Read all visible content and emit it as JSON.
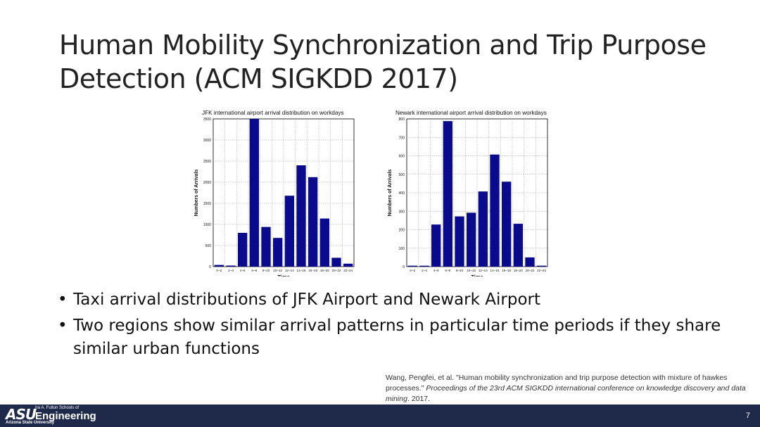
{
  "slide": {
    "title": "Human Mobility Synchronization and Trip Purpose Detection (ACM SIGKDD 2017)",
    "page_number": "7",
    "bullet_symbol": "•",
    "bullets": [
      "Taxi arrival distributions of JFK Airport and Newark Airport",
      "Two regions show similar arrival patterns in particular time periods if they share similar urban functions"
    ],
    "citation": {
      "pre": "Wang, Pengfei, et al. \"Human mobility synchronization and trip purpose detection with mixture of hawkes processes.\" ",
      "venue": "Proceedings of the 23rd ACM SIGKDD international conference on knowledge discovery and data mining",
      "post": ". 2017."
    }
  },
  "footer": {
    "logo_mark": "ASU",
    "logo_small": "Ira A. Fulton Schools of",
    "logo_main": "Engineering",
    "logo_sub": "Arizona State University",
    "background": "#1f2a4a"
  },
  "chart_data": [
    {
      "type": "bar",
      "title": "JFK international airport arrival distribution on workdays",
      "xlabel": "Time",
      "ylabel": "Numbers of Arrivals",
      "categories": [
        "0~2",
        "2~4",
        "4~6",
        "6~8",
        "8~10",
        "10~12",
        "12~14",
        "14~16",
        "16~18",
        "18~20",
        "20~22",
        "22~24"
      ],
      "values": [
        40,
        25,
        800,
        3500,
        940,
        680,
        1680,
        2400,
        2120,
        1140,
        210,
        70
      ],
      "ylim": [
        0,
        3500
      ],
      "yticks": [
        0,
        500,
        1000,
        1500,
        2000,
        2500,
        3000,
        3500
      ],
      "grid": true,
      "bar_color": "#0a0a8c"
    },
    {
      "type": "bar",
      "title": "Newark international airport arrival distribution on workdays",
      "xlabel": "Time",
      "ylabel": "Numbers of Arrivals",
      "categories": [
        "0~2",
        "2~4",
        "4~6",
        "6~8",
        "8~10",
        "10~12",
        "12~14",
        "14~16",
        "16~18",
        "18~20",
        "20~22",
        "22~24"
      ],
      "values": [
        5,
        5,
        228,
        788,
        272,
        292,
        407,
        607,
        460,
        232,
        50,
        5
      ],
      "ylim": [
        0,
        800
      ],
      "yticks": [
        0,
        100,
        200,
        300,
        400,
        500,
        600,
        700,
        800
      ],
      "grid": true,
      "bar_color": "#0a0a8c"
    }
  ]
}
